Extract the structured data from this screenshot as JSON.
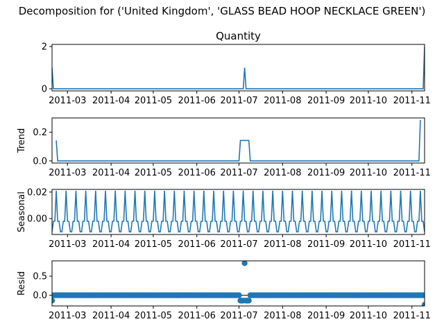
{
  "figure": {
    "title": "Decomposition for ('United Kingdom', 'GLASS BEAD HOOP NECKLACE GREEN')"
  },
  "chart_data": [
    {
      "type": "line",
      "title": "Quantity",
      "ylabel": "",
      "ylim": [
        -0.1,
        2.1
      ],
      "yticks": [
        0,
        2
      ],
      "x_ticks": [
        "2011-03",
        "2011-04",
        "2011-05",
        "2011-06",
        "2011-07",
        "2011-08",
        "2011-09",
        "2011-10",
        "2011-11"
      ],
      "x_range": [
        "2011-02-18",
        "2011-11-10"
      ],
      "series": [
        {
          "values": [
            {
              "x": "2011-02-18",
              "y": 1
            },
            {
              "x": "2011-02-19",
              "y": 0
            },
            {
              "x": "2011-07-04",
              "y": 0
            },
            {
              "x": "2011-07-05",
              "y": 1
            },
            {
              "x": "2011-07-06",
              "y": 0
            },
            {
              "x": "2011-11-09",
              "y": 0
            },
            {
              "x": "2011-11-10",
              "y": 2
            }
          ]
        }
      ]
    },
    {
      "type": "line",
      "title": "",
      "ylabel": "Trend",
      "ylim": [
        -0.015,
        0.3
      ],
      "yticks": [
        0.0,
        0.2
      ],
      "x_ticks": [
        "2011-03",
        "2011-04",
        "2011-05",
        "2011-06",
        "2011-07",
        "2011-08",
        "2011-09",
        "2011-10",
        "2011-11"
      ],
      "x_range": [
        "2011-02-18",
        "2011-11-10"
      ],
      "series": [
        {
          "values": [
            {
              "x": "2011-02-21",
              "y": 0.143
            },
            {
              "x": "2011-02-22",
              "y": 0
            },
            {
              "x": "2011-07-01",
              "y": 0
            },
            {
              "x": "2011-07-02",
              "y": 0.143
            },
            {
              "x": "2011-07-08",
              "y": 0.143
            },
            {
              "x": "2011-07-09",
              "y": 0
            },
            {
              "x": "2011-11-06",
              "y": 0
            },
            {
              "x": "2011-11-07",
              "y": 0.286
            }
          ]
        }
      ]
    },
    {
      "type": "line",
      "title": "",
      "ylabel": "Seasonal",
      "ylim": [
        -0.012,
        0.022
      ],
      "yticks": [
        0.0,
        0.02
      ],
      "x_ticks": [
        "2011-03",
        "2011-04",
        "2011-05",
        "2011-06",
        "2011-07",
        "2011-08",
        "2011-09",
        "2011-10",
        "2011-11"
      ],
      "x_range": [
        "2011-02-18",
        "2011-11-10"
      ],
      "series": [
        {
          "start": "2011-02-18",
          "end": "2011-11-10",
          "weekly_pattern": [
            -0.01,
            -0.002,
            -0.002,
            0.021,
            -0.002,
            -0.002,
            -0.01
          ]
        }
      ]
    },
    {
      "type": "scatter",
      "title": "",
      "ylabel": "Resid",
      "ylim": [
        -0.28,
        0.9
      ],
      "yticks": [
        0.0,
        0.5
      ],
      "x_ticks": [
        "2011-03",
        "2011-04",
        "2011-05",
        "2011-06",
        "2011-07",
        "2011-08",
        "2011-09",
        "2011-10",
        "2011-11"
      ],
      "x_range": [
        "2011-02-18",
        "2011-11-10"
      ],
      "series": [
        {
          "start": "2011-02-18",
          "end": "2011-11-10",
          "baseline": 0.0,
          "points": [
            {
              "x": "2011-02-18",
              "y": -0.14
            },
            {
              "x": "2011-07-02",
              "y": -0.14
            },
            {
              "x": "2011-07-03",
              "y": -0.14
            },
            {
              "x": "2011-07-04",
              "y": -0.14
            },
            {
              "x": "2011-07-05",
              "y": 0.84
            },
            {
              "x": "2011-07-06",
              "y": -0.14
            },
            {
              "x": "2011-07-07",
              "y": -0.14
            },
            {
              "x": "2011-07-08",
              "y": -0.14
            },
            {
              "x": "2011-11-10",
              "y": -0.25
            }
          ]
        }
      ]
    }
  ]
}
